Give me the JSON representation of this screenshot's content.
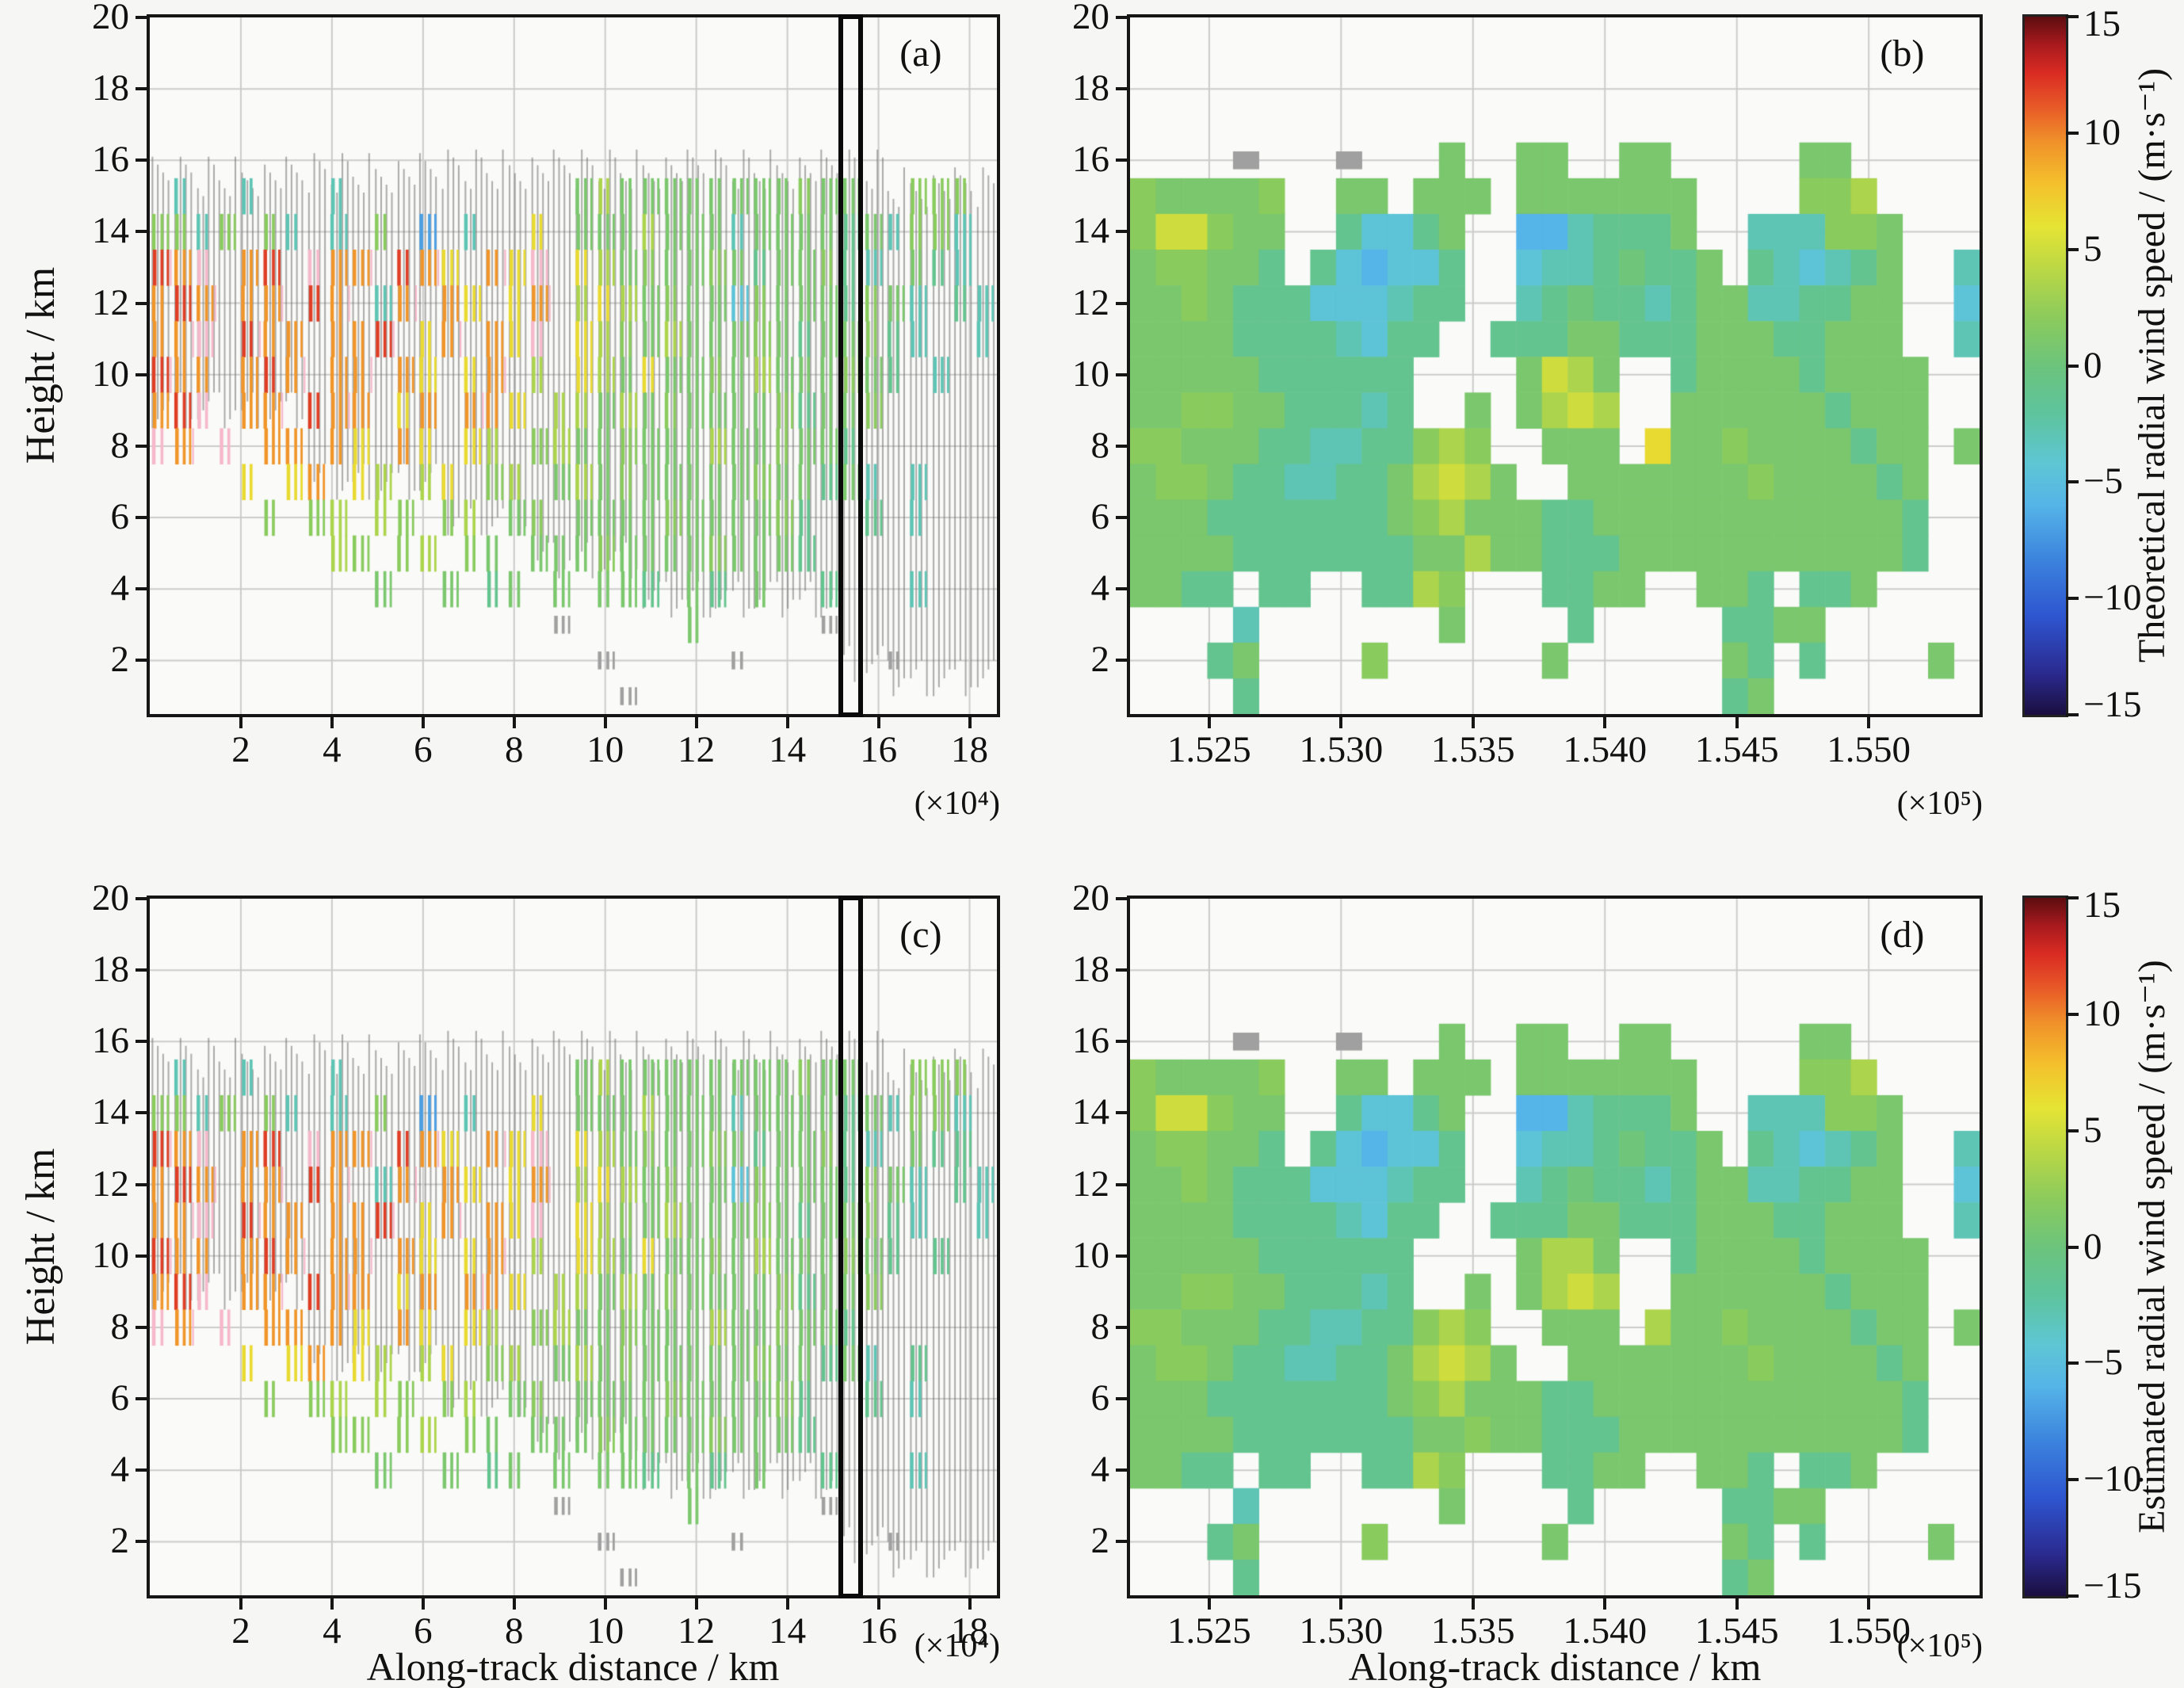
{
  "chart_data": {
    "type": "heatmap",
    "title": "",
    "legend_position": "right-colorbars",
    "grid": "on",
    "colormap": {
      "range": [
        -15,
        15
      ],
      "stops": [
        [
          0.0,
          "#1b0f3f"
        ],
        [
          0.06,
          "#2a2a8f"
        ],
        [
          0.14,
          "#2e55cf"
        ],
        [
          0.22,
          "#3b82dd"
        ],
        [
          0.3,
          "#55b4e8"
        ],
        [
          0.36,
          "#5ec6d4"
        ],
        [
          0.43,
          "#5ec49e"
        ],
        [
          0.5,
          "#6cc47c"
        ],
        [
          0.57,
          "#8ccb5c"
        ],
        [
          0.64,
          "#bcd844"
        ],
        [
          0.7,
          "#e5e434"
        ],
        [
          0.76,
          "#f4c12c"
        ],
        [
          0.82,
          "#f0922a"
        ],
        [
          0.87,
          "#e85a28"
        ],
        [
          0.92,
          "#d92b23"
        ],
        [
          0.96,
          "#a81a1e"
        ],
        [
          1.0,
          "#5c0d10"
        ]
      ]
    },
    "value_codes": {
      "m": 12,
      "r": 9.5,
      "o": 6.5,
      "Y": 5,
      "y": 3.5,
      "l": 2,
      "g": 1,
      "e": 0.2,
      "t": -1.2,
      "c": -3,
      "b": -4.5,
      "a": -6,
      "B": -7
    },
    "literal_codes": {
      "p": "#f6b8cb",
      "G": "#a0a0a0"
    },
    "gridline_color": "#cbcbcb",
    "panels": [
      {
        "id": "a",
        "label": "(a)",
        "kind": "strips",
        "x_range": [
          0,
          18.6
        ],
        "y_range": [
          0.5,
          20
        ],
        "x_ticks": [
          2,
          4,
          6,
          8,
          10,
          12,
          14,
          16,
          18
        ],
        "x_tick_labels": [
          "2",
          "4",
          "6",
          "8",
          "10",
          "12",
          "14",
          "16",
          "18"
        ],
        "y_ticks": [
          2,
          4,
          6,
          8,
          10,
          12,
          14,
          16,
          18,
          20
        ],
        "x_scale_note": "(×10⁴)",
        "y_axis_label": "Height / km",
        "x_axis_label": "",
        "highlight_box": {
          "x0": 15.18,
          "x1": 15.72
        },
        "grid_cols": 38,
        "rows_y_top": 16,
        "grid": [
          "......................................",
          ".c..c...c..........gygggggggglgg..lll.",
          "llcl.lc.c.l.B.c..o.gggygggcggggtgcllc.",
          "mrp.rm.prr.mro.rop.oyglgglgtggltc.gtc.",
          "rmr.rr.mr.cr.ro.or.yoyglggblgggtlgc.tc",
          "rrp.mrr.rrm.or.rop.oylgyggglgtggltc..c",
          "mrr.rmr.rr.ro.or.y.oygogglgyggglgt.c..",
          "rmp.rr.mrr.or.rro.yygyglggggltggl.....",
          "pr.p.rr.ro.ro.oy.lygglgggygglggt......",
          "....o.or.oy.yo.ly.gyglggggglggtgc.c...",
          ".....l.ly.yl.ly.gl.gggglgggglt..t.c...",
          "........yl.ly.lg.ggglgggglgggt........",
          "..........g..g.tg.g.ggt.gt.g..t...c...",
          "..................G.....g.....G.......",
          "....................G.....G......G....",
          ".....................G................"
        ],
        "gray_segments": [
          [
            0,
            6,
            8.5,
            16.1
          ],
          [
            7,
            12,
            6.5,
            16.2
          ],
          [
            13,
            16,
            5.5,
            16.3
          ],
          [
            17,
            21,
            4.3,
            16.3
          ],
          [
            22,
            30,
            3.2,
            16.3
          ],
          [
            31,
            32,
            1.4,
            16.3
          ],
          [
            33,
            37,
            1.0,
            15.8
          ]
        ]
      },
      {
        "id": "b",
        "label": "(b)",
        "kind": "blocks",
        "x_range": [
          1.522,
          1.5542
        ],
        "y_range": [
          0.5,
          20
        ],
        "x_ticks": [
          1.525,
          1.53,
          1.535,
          1.54,
          1.545,
          1.55
        ],
        "x_tick_labels": [
          "1.525",
          "1.530",
          "1.535",
          "1.540",
          "1.545",
          "1.550"
        ],
        "y_ticks": [
          2,
          4,
          6,
          8,
          10,
          12,
          14,
          16,
          18,
          20
        ],
        "x_scale_note": "(×10⁵)",
        "x_axis_label": "",
        "colorbar": {
          "title": "Theoretical radial wind speed / (m·s⁻¹)",
          "range": [
            -15,
            15
          ],
          "ticks": [
            15,
            10,
            5,
            0,
            -5,
            -10,
            -15
          ],
          "tick_labels": [
            "15",
            "10",
            "5",
            "0",
            "−5",
            "−10",
            "−15"
          ]
        },
        "grid_cols": 33,
        "rows_y_top": 16,
        "grid": [
          "....G...G...g..gg..gg.....gg.....",
          "lggggl..gg.ggg.ggggggg....lly....",
          "lYYlgg..tbbtg..aactttg..cccllg...",
          "gllggt.tbabbt..bcctettg.tcbctg..c",
          "gglgtttbbbctt..ctettctggccttgg..b",
          "ggggttttcbtt..tttggtttgggttggg..c",
          "gggggtttttt....gYyg..tggggtgggg..",
          "ggllggtttct..g.gyYy..ggggggtggg..",
          "llgggttccttlyl..ggg.ogglggggtgg.g",
          "gllgttccttgyYyg..ggggggglggggtg..",
          "gggtttttttglygggttggggggggggggt..",
          "ggggtttttttggyggtttgggggggggggt..",
          "ggtt.tt..ttyl...ttgg..ggt.ttg....",
          "....c.......g....t.....ttgg......",
          "...tg....l......g......gt.t....g.",
          "....t..................tg........"
        ]
      },
      {
        "id": "c",
        "label": "(c)",
        "kind": "strips",
        "x_range": [
          0,
          18.6
        ],
        "y_range": [
          0.5,
          20
        ],
        "x_ticks": [
          2,
          4,
          6,
          8,
          10,
          12,
          14,
          16,
          18
        ],
        "x_tick_labels": [
          "2",
          "4",
          "6",
          "8",
          "10",
          "12",
          "14",
          "16",
          "18"
        ],
        "y_ticks": [
          2,
          4,
          6,
          8,
          10,
          12,
          14,
          16,
          18,
          20
        ],
        "x_scale_note": "(×10⁴)",
        "y_axis_label": "Height / km",
        "x_axis_label": "Along-track distance / km",
        "highlight_box": {
          "x0": 15.18,
          "x1": 15.72
        },
        "grid_cols": 38,
        "rows_y_top": 16,
        "grid": [
          "......................................",
          ".c..c...c..........gygggggggglgg..lll.",
          "llcl.lc.c.l.B.c..o.gggygggcggggtgcllc.",
          "mrp.rm.prr.mro.rop.oyglgglgtggltc.gtt.",
          "rmr.rr.mr.cr.ro.or.yoyglggblgggtlgc.tc",
          "rrp.mrr.rrm.or.rop.oylgyggglgtggltc..c",
          "mrr.rmr.rr.ro.or.y.oygogglgyggglgt.t..",
          "rmp.rr.mrr.or.rro.yygyglggggltggl.....",
          "pr.p.rr.ro.ro.oy.lygglgggygglggt......",
          "....o.or.oy.yo.ly.gyglggggglggtgc.t...",
          ".....l.ly.yl.ly.gl.gggglgggglt..t.c...",
          "........ll.ly.lg.ggglgggglgggt........",
          "..........g..g.tg.g.ggt.gt.g..t...c...",
          "..................G.....g.....G.......",
          "....................G.....G......G....",
          ".....................G................"
        ],
        "gray_segments": [
          [
            0,
            6,
            8.5,
            16.1
          ],
          [
            7,
            12,
            6.5,
            16.2
          ],
          [
            13,
            16,
            5.5,
            16.3
          ],
          [
            17,
            21,
            4.3,
            16.3
          ],
          [
            22,
            30,
            3.2,
            16.3
          ],
          [
            31,
            32,
            1.4,
            16.3
          ],
          [
            33,
            37,
            1.0,
            15.8
          ]
        ]
      },
      {
        "id": "d",
        "label": "(d)",
        "kind": "blocks",
        "x_range": [
          1.522,
          1.5542
        ],
        "y_range": [
          0.5,
          20
        ],
        "x_ticks": [
          1.525,
          1.53,
          1.535,
          1.54,
          1.545,
          1.55
        ],
        "x_tick_labels": [
          "1.525",
          "1.530",
          "1.535",
          "1.540",
          "1.545",
          "1.550"
        ],
        "y_ticks": [
          2,
          4,
          6,
          8,
          10,
          12,
          14,
          16,
          18,
          20
        ],
        "x_scale_note": "(×10⁵)",
        "x_axis_label": "Along-track distance / km",
        "colorbar": {
          "title": "Estimated radial wind speed / (m·s⁻¹)",
          "range": [
            -15,
            15
          ],
          "ticks": [
            15,
            10,
            5,
            0,
            -5,
            -10,
            -15
          ],
          "tick_labels": [
            "15",
            "10",
            "5",
            "0",
            "−5",
            "−10",
            "−15"
          ]
        },
        "grid_cols": 33,
        "rows_y_top": 16,
        "grid": [
          "....G...G...g..gg..gg.....gg.....",
          "lggggl..gg.ggg.ggggggg....lly....",
          "lYYlgg..tbbtg..aactttg..cccllg...",
          "gllggt.tbabbt..bcctettg.tcbctg..c",
          "gglgtttbbbctt..ctettctggccttgg..b",
          "ggggttttcbtt..tttggtttgggttggg..c",
          "gggggtttttt....gyyg..tggggtgggg..",
          "ggllggtttct..g.gyYy..ggggggtggg..",
          "llgggttccttlyl..ggg.ygglggggtgg.g",
          "gllgttccttgyYyg..ggggggglggggtg..",
          "gggtttttttglygggttggggggggggggt..",
          "ggggtttttttgglggtttgggggggggggt..",
          "ggtt.tt..ttyl...ttgg..ggt.ttg....",
          "....c.......g....t.....ttgg......",
          "...tg....l......g......gt.t....g.",
          "....t..................tg........"
        ]
      }
    ]
  }
}
